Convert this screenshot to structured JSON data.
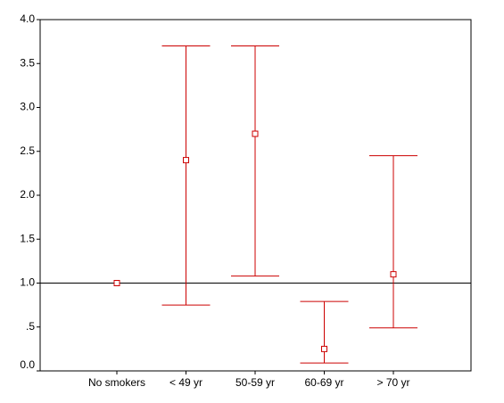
{
  "chart_data": {
    "type": "errorbar",
    "categories": [
      "No smokers",
      "< 49 yr",
      "50-59 yr",
      "60-69 yr",
      "> 70 yr"
    ],
    "estimate": [
      1.0,
      2.4,
      2.7,
      0.25,
      1.1
    ],
    "lower": [
      null,
      0.75,
      1.08,
      0.09,
      0.49
    ],
    "upper": [
      null,
      3.7,
      3.7,
      0.79,
      2.45
    ],
    "color": "#cc0000",
    "reference_line": 1.0,
    "ylim": [
      0,
      4
    ],
    "yticks": [
      {
        "value": 0,
        "label": "0.0"
      },
      {
        "value": 0.5,
        "label": ".5"
      },
      {
        "value": 1,
        "label": "1.0"
      },
      {
        "value": 1.5,
        "label": "1.5"
      },
      {
        "value": 2,
        "label": "2.0"
      },
      {
        "value": 2.5,
        "label": "2.5"
      },
      {
        "value": 3,
        "label": "3.0"
      },
      {
        "value": 3.5,
        "label": "3.5"
      },
      {
        "value": 4,
        "label": "4.0"
      }
    ]
  }
}
